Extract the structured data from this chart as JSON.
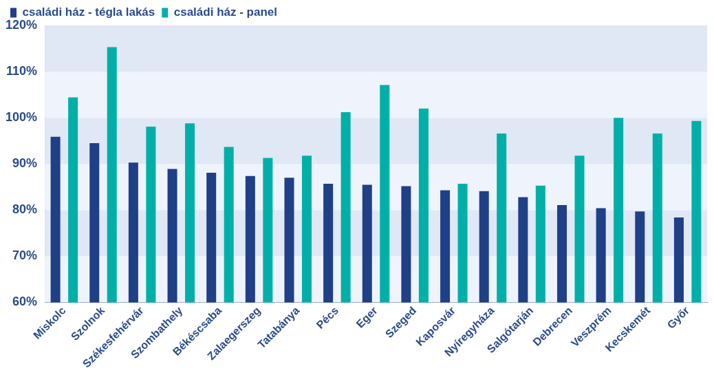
{
  "chart_data": {
    "type": "bar",
    "categories": [
      "Miskolc",
      "Szolnok",
      "Székesfehérvár",
      "Szombathely",
      "Békéscsaba",
      "Zalaegerszeg",
      "Tatabánya",
      "Pécs",
      "Eger",
      "Szeged",
      "Kaposvár",
      "Nyíregyháza",
      "Salgótarján",
      "Debrecen",
      "Veszprém",
      "Kecskemét",
      "Győr"
    ],
    "series": [
      {
        "name": "családi ház - tégla lakás",
        "color": "#1f3f87",
        "values": [
          95.9,
          94.5,
          90.3,
          88.9,
          88.1,
          87.4,
          87.0,
          85.7,
          85.5,
          85.2,
          84.3,
          84.1,
          82.8,
          81.1,
          80.4,
          79.7,
          78.4
        ]
      },
      {
        "name": "családi ház - panel",
        "color": "#00b0a8",
        "values": [
          104.4,
          115.3,
          98.1,
          98.8,
          93.7,
          91.3,
          91.8,
          101.2,
          107.1,
          102.0,
          85.7,
          96.6,
          85.3,
          91.8,
          100.0,
          96.6,
          99.3
        ]
      }
    ],
    "ylim": [
      60,
      120
    ],
    "yticks": [
      {
        "value": 60,
        "label": "60%"
      },
      {
        "value": 70,
        "label": "70%"
      },
      {
        "value": 80,
        "label": "80%"
      },
      {
        "value": 90,
        "label": "90%"
      },
      {
        "value": 100,
        "label": "100%"
      },
      {
        "value": 110,
        "label": "110%"
      },
      {
        "value": 120,
        "label": "120%"
      }
    ],
    "bands": [
      {
        "axis": "y",
        "from": 60,
        "to": 70,
        "color": "#eff3fb"
      },
      {
        "axis": "y",
        "from": 70,
        "to": 80,
        "color": "#e0e7f5"
      },
      {
        "axis": "y",
        "from": 80,
        "to": 90,
        "color": "#eff3fb"
      },
      {
        "axis": "y",
        "from": 90,
        "to": 100,
        "color": "#e0e7f5"
      },
      {
        "axis": "y",
        "from": 100,
        "to": 110,
        "color": "#eff3fb"
      },
      {
        "axis": "y",
        "from": 110,
        "to": 120,
        "color": "#e0e7f5"
      }
    ],
    "legend": "top left"
  }
}
